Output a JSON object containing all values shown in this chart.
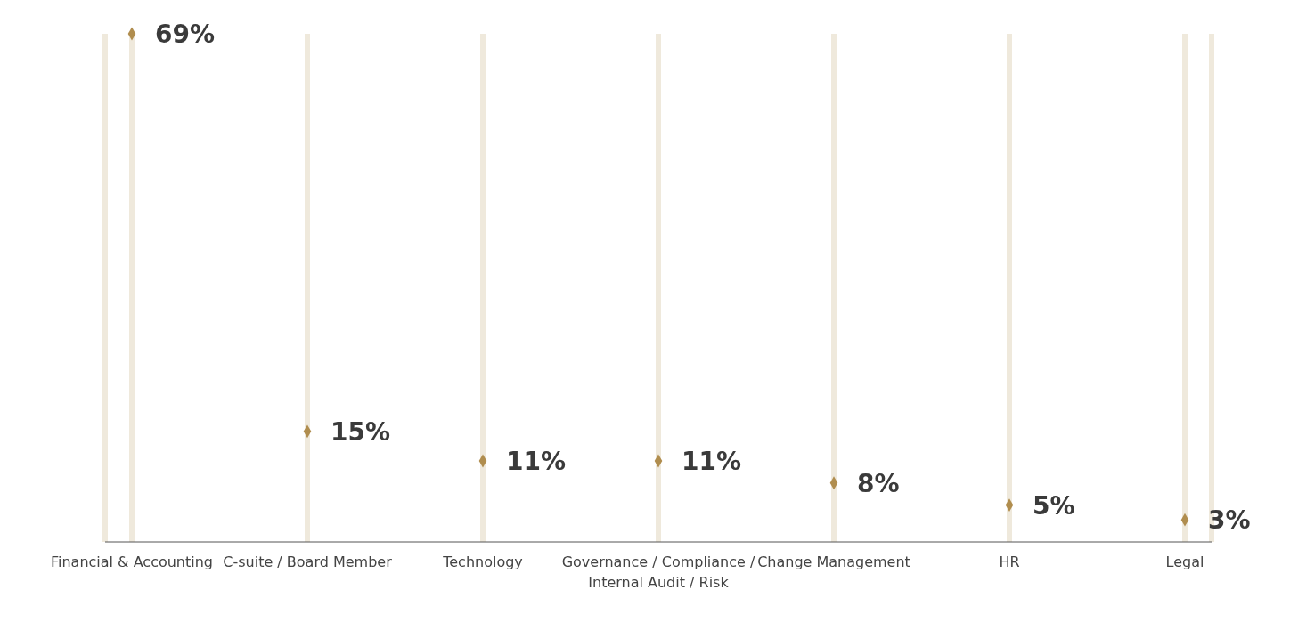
{
  "chart_data": {
    "type": "scatter",
    "categories": [
      "Financial & Accounting",
      "C-suite / Board Member",
      "Technology",
      "Governance / Compliance / Internal Audit / Risk",
      "Change Management",
      "HR",
      "Legal"
    ],
    "values": [
      69,
      15,
      11,
      11,
      8,
      5,
      3
    ],
    "value_labels": [
      "69%",
      "15%",
      "11%",
      "11%",
      "8%",
      "5%",
      "3%"
    ],
    "color": "#b08d4e",
    "marker": "diamond",
    "grid": "x"
  }
}
